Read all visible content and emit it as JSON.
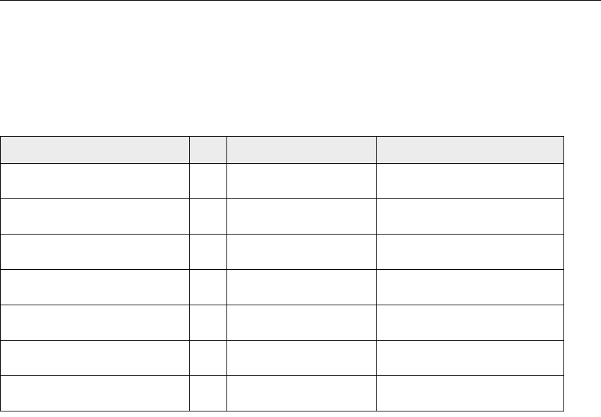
{
  "table": {
    "headers": [
      "",
      "",
      "",
      ""
    ],
    "rows": [
      [
        "",
        "",
        "",
        ""
      ],
      [
        "",
        "",
        "",
        ""
      ],
      [
        "",
        "",
        "",
        ""
      ],
      [
        "",
        "",
        "",
        ""
      ],
      [
        "",
        "",
        "",
        ""
      ],
      [
        "",
        "",
        "",
        ""
      ],
      [
        "",
        "",
        "",
        ""
      ]
    ],
    "header_background": "#ececec",
    "border_color": "#000000"
  }
}
